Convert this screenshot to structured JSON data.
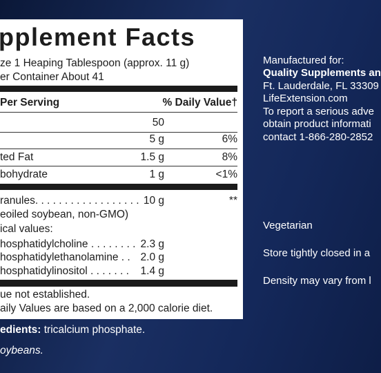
{
  "panel": {
    "title": "pplement Facts",
    "serving_size": "ze 1 Heaping Tablespoon (approx. 11 g)",
    "servings": "er Container About 41",
    "header_left": "Per Serving",
    "header_right": "% Daily Value†",
    "rows": [
      {
        "amount": "50"
      },
      {
        "amount": "5 g",
        "dv": "6%"
      },
      {
        "label": "ted Fat",
        "amount": "1.5 g",
        "dv": "8%"
      },
      {
        "label": "bohydrate",
        "amount": "1 g",
        "dv": "<1%"
      }
    ],
    "granules": {
      "label": "ranules. . . . . . . . . . . . . . . . . .",
      "amount": "10 g",
      "dv": "**"
    },
    "source": "eoiled soybean, non-GMO)",
    "typical": "ical values:",
    "components": [
      {
        "label": "hosphatidylcholine . . . . . . . .",
        "amount": "2.3 g"
      },
      {
        "label": "hosphatidylethanolamine . .",
        "amount": "2.0 g"
      },
      {
        "label": "hosphatidylinositol . . . . . . .",
        "amount": "1.4 g"
      }
    ],
    "footnotes": [
      "ue not established.",
      "aily Values are based on a 2,000 calorie diet."
    ]
  },
  "other_ingredients": {
    "label": "edients:",
    "text": " tricalcium phosphate."
  },
  "allergen": "oybeans.",
  "manufacturer": [
    "Manufactured for:",
    "Quality Supplements an",
    "Ft. Lauderdale, FL 33309",
    "LifeExtension.com",
    "To report a serious adve",
    "obtain product informati",
    "contact 1-866-280-2852"
  ],
  "notes": [
    "Vegetarian",
    "Store tightly closed in a",
    "Density may vary from l"
  ]
}
